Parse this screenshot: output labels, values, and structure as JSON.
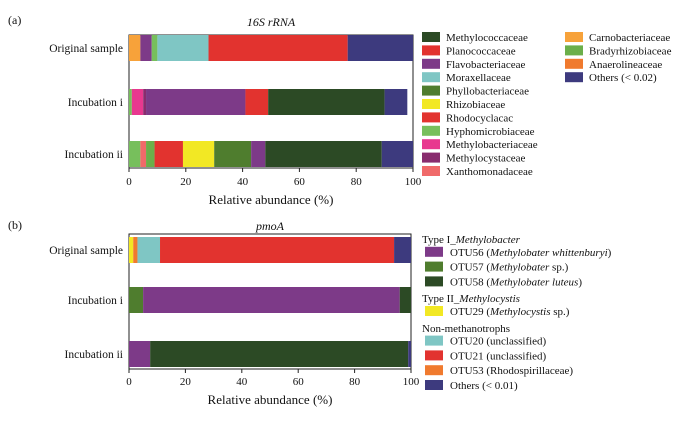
{
  "figure": {
    "x_label": "Relative abundance (%)"
  },
  "chart_data": [
    {
      "type": "bar",
      "orientation": "horizontal",
      "stacked": true,
      "panel": "(a)",
      "title": "16S rRNA",
      "xlabel": "Relative abundance (%)",
      "xlim": [
        0,
        100
      ],
      "xticks": [
        0,
        20,
        40,
        60,
        80,
        100
      ],
      "categories": [
        "Original sample",
        "Incubation i",
        "Incubation ii"
      ],
      "series": [
        {
          "name": "Carnobacteriaceae",
          "color": "#F7A23A",
          "values": [
            4,
            0,
            0
          ]
        },
        {
          "name": "Flavobacteriaceae",
          "color": "#7D3A88",
          "values": [
            4,
            0,
            0
          ]
        },
        {
          "name": "Hyphomicrobiaceae",
          "color": "#77BF5C",
          "values": [
            2,
            1,
            4
          ]
        },
        {
          "name": "Moraxellaceae",
          "color": "#7FC6C4",
          "values": [
            18,
            0,
            0
          ]
        },
        {
          "name": "Methylobacteriaceae",
          "color": "#E8388F",
          "values": [
            0,
            4,
            0
          ]
        },
        {
          "name": "Xanthomonadaceae",
          "color": "#F06A6A",
          "values": [
            0,
            0,
            2
          ]
        },
        {
          "name": "Methylocystaceae",
          "color": "#892C6E",
          "values": [
            0,
            1,
            0
          ]
        },
        {
          "name": "Bradyrhizobiaceae",
          "color": "#6BAF4A",
          "values": [
            0,
            0,
            3
          ]
        },
        {
          "name": "Flavobacteriaceae",
          "color": "#7D3A88",
          "values": [
            0,
            35,
            0
          ]
        },
        {
          "name": "Planococcaceae",
          "color": "#E2332F",
          "values": [
            49,
            8,
            10
          ]
        },
        {
          "name": "Rhizobiaceae",
          "color": "#F2E824",
          "values": [
            0,
            0,
            11
          ]
        },
        {
          "name": "Phyllobacteriaceae",
          "color": "#4F7D2E",
          "values": [
            0,
            0,
            13
          ]
        },
        {
          "name": "Flavobacteriaceae",
          "color": "#7D3A88",
          "values": [
            0,
            0,
            5
          ]
        },
        {
          "name": "Methylococcaceae",
          "color": "#2C4A25",
          "values": [
            0,
            41,
            41
          ]
        },
        {
          "name": "Others (< 0.02)",
          "color": "#3D3A7E",
          "values": [
            23,
            8,
            11
          ]
        }
      ],
      "legend": {
        "columns": [
          [
            {
              "name": "Methylococcaceae",
              "color": "#2C4A25"
            },
            {
              "name": "Planococcaceae",
              "color": "#E2332F"
            },
            {
              "name": "Flavobacteriaceae",
              "color": "#7D3A88"
            },
            {
              "name": "Moraxellaceae",
              "color": "#7FC6C4"
            },
            {
              "name": "Phyllobacteriaceae",
              "color": "#4F7D2E"
            },
            {
              "name": "Rhizobiaceae",
              "color": "#F2E824"
            },
            {
              "name": "Rhodocyclacac",
              "color": "#E2332F"
            },
            {
              "name": "Hyphomicrobiaceae",
              "color": "#77BF5C"
            },
            {
              "name": "Methylobacteriaceae",
              "color": "#E8388F"
            },
            {
              "name": "Methylocystaceae",
              "color": "#892C6E"
            },
            {
              "name": "Xanthomonadaceae",
              "color": "#F06A6A"
            }
          ],
          [
            {
              "name": "Carnobacteriaceae",
              "color": "#F7A23A"
            },
            {
              "name": "Bradyrhizobiaceae",
              "color": "#6BAF4A"
            },
            {
              "name": "Anaerolineaceae",
              "color": "#F07A2E"
            },
            {
              "name": "Others (< 0.02)",
              "color": "#3D3A7E"
            }
          ]
        ]
      }
    },
    {
      "type": "bar",
      "orientation": "horizontal",
      "stacked": true,
      "panel": "(b)",
      "title": "pmoA",
      "xlabel": "Relative abundance (%)",
      "xlim": [
        0,
        100
      ],
      "xticks": [
        0,
        20,
        40,
        60,
        80,
        100
      ],
      "categories": [
        "Original sample",
        "Incubation i",
        "Incubation ii"
      ],
      "series": [
        {
          "name": "OTU29 (Methylocystis sp.)",
          "color": "#F2E824",
          "values": [
            1.5,
            0,
            0
          ]
        },
        {
          "name": "OTU53 (Rhodospirillaceae)",
          "color": "#F07A2E",
          "values": [
            1.5,
            0,
            0
          ]
        },
        {
          "name": "OTU20 (unclassified)",
          "color": "#7FC6C4",
          "values": [
            8,
            0,
            0
          ]
        },
        {
          "name": "OTU57 (Methylobater sp.)",
          "color": "#4F7D2E",
          "values": [
            0,
            5,
            0
          ]
        },
        {
          "name": "OTU56 (Methylobater whittenburyi)",
          "color": "#7D3A88",
          "values": [
            0,
            91,
            7.5
          ]
        },
        {
          "name": "OTU21 (unclassified)",
          "color": "#E2332F",
          "values": [
            83,
            0,
            0
          ]
        },
        {
          "name": "OTU58 (Methylobater luteus)",
          "color": "#2C4A25",
          "values": [
            0,
            4,
            91.5
          ]
        },
        {
          "name": "Others (< 0.01)",
          "color": "#3D3A7E",
          "values": [
            6,
            0,
            1
          ]
        }
      ],
      "legend": {
        "groups": [
          {
            "header_prefix": "Type I_",
            "header_italic": "Methylobacter",
            "items": [
              {
                "prefix": "OTU56 (",
                "italic": "Methylobater whittenburyi",
                "suffix": ")",
                "color": "#7D3A88"
              },
              {
                "prefix": "OTU57 (",
                "italic": "Methylobater",
                "suffix": " sp.)",
                "color": "#4F7D2E"
              },
              {
                "prefix": "OTU58 (",
                "italic": "Methylobater luteus",
                "suffix": ")",
                "color": "#2C4A25"
              }
            ]
          },
          {
            "header_prefix": "Type II_",
            "header_italic": "Methylocystis",
            "items": [
              {
                "prefix": "OTU29 (",
                "italic": "Methylocystis",
                "suffix": " sp.)",
                "color": "#F2E824"
              }
            ]
          },
          {
            "header_prefix": "Non-methanotrophs",
            "header_italic": "",
            "items": [
              {
                "prefix": "OTU20 (unclassified)",
                "italic": "",
                "suffix": "",
                "color": "#7FC6C4"
              },
              {
                "prefix": "OTU21 (unclassified)",
                "italic": "",
                "suffix": "",
                "color": "#E2332F"
              },
              {
                "prefix": "OTU53 (Rhodospirillaceae)",
                "italic": "",
                "suffix": "",
                "color": "#F07A2E"
              },
              {
                "prefix": "Others (< 0.01)",
                "italic": "",
                "suffix": "",
                "color": "#3D3A7E"
              }
            ]
          }
        ]
      }
    }
  ]
}
